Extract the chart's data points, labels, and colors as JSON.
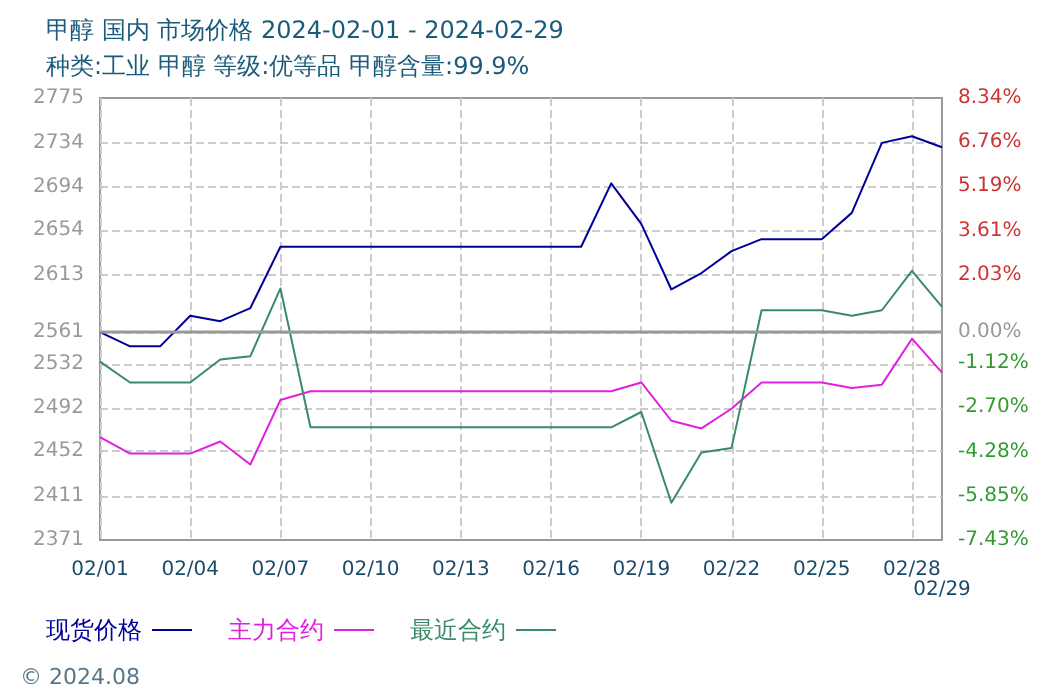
{
  "chart_data": {
    "type": "line",
    "title": "甲醇 国内 市场价格 2024-02-01 - 2024-02-29",
    "subtitle": "种类:工业 甲醇 等级:优等品 甲醇含量:99.9%",
    "annotations": [
      "© 2024.08"
    ],
    "categories": [
      "02/01",
      null,
      null,
      "02/04",
      null,
      null,
      "02/07",
      null,
      null,
      "02/10",
      null,
      null,
      "02/13",
      null,
      null,
      "02/16",
      null,
      null,
      "02/19",
      null,
      null,
      "02/22",
      null,
      null,
      "02/25",
      null,
      null,
      "02/28",
      "02/29"
    ],
    "series": [
      {
        "name": "现货价格",
        "color": "#000099",
        "values": [
          2561,
          2548,
          2548,
          2576,
          2571,
          2583,
          2639,
          2639,
          2639,
          2639,
          2639,
          2639,
          2639,
          2639,
          2639,
          2639,
          2639,
          2697,
          2660,
          2600,
          2615,
          2635,
          2646,
          2646,
          2646,
          2670,
          2734,
          2740,
          2730
        ]
      },
      {
        "name": "主力合约",
        "color": "#e020e0",
        "values": [
          2465,
          2450,
          2450,
          2450,
          2461,
          2440,
          2499,
          2507,
          2507,
          2507,
          2507,
          2507,
          2507,
          2507,
          2507,
          2507,
          2507,
          2507,
          2515,
          2480,
          2473,
          2491,
          2515,
          2515,
          2515,
          2510,
          2513,
          2555,
          2524
        ]
      },
      {
        "name": "最近合约",
        "color": "#3a8a6a",
        "values": [
          2534,
          2515,
          2515,
          2515,
          2536,
          2539,
          2601,
          2474,
          2474,
          2474,
          2474,
          2474,
          2474,
          2474,
          2474,
          2474,
          2474,
          2474,
          2488,
          2405,
          2451,
          2455,
          2581,
          2581,
          2581,
          2576,
          2581,
          2617,
          2584
        ]
      }
    ],
    "ylim": [
      2371,
      2775
    ],
    "yticks": [
      2371,
      2411,
      2452,
      2492,
      2532,
      2561,
      2613,
      2654,
      2694,
      2734,
      2775
    ],
    "y2lim": [
      -7.43,
      8.34
    ],
    "y2ticks": [
      {
        "value": -7.43,
        "label": "-7.43%"
      },
      {
        "value": -5.85,
        "label": "-5.85%"
      },
      {
        "value": -4.28,
        "label": "-4.28%"
      },
      {
        "value": -2.7,
        "label": "-2.70%"
      },
      {
        "value": -1.12,
        "label": "-1.12%"
      },
      {
        "value": 0,
        "label": "0.00%"
      },
      {
        "value": 2.03,
        "label": "2.03%"
      },
      {
        "value": 3.61,
        "label": "3.61%"
      },
      {
        "value": 5.19,
        "label": "5.19%"
      },
      {
        "value": 6.76,
        "label": "6.76%"
      },
      {
        "value": 8.34,
        "label": "8.34%"
      }
    ],
    "ref_lines": [
      {
        "axis": "y",
        "value": 2561,
        "color": "#999999"
      }
    ],
    "grid": true,
    "legend": "bottom left",
    "marker": "none",
    "line_style": "solid"
  }
}
